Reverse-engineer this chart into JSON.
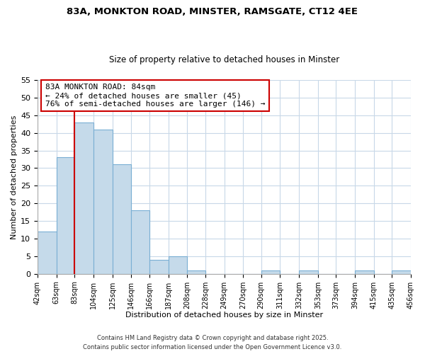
{
  "title": "83A, MONKTON ROAD, MINSTER, RAMSGATE, CT12 4EE",
  "subtitle": "Size of property relative to detached houses in Minster",
  "xlabel": "Distribution of detached houses by size in Minster",
  "ylabel": "Number of detached properties",
  "bins": [
    42,
    63,
    83,
    104,
    125,
    146,
    166,
    187,
    208,
    228,
    249,
    270,
    290,
    311,
    332,
    353,
    373,
    394,
    415,
    435,
    456
  ],
  "counts": [
    12,
    33,
    43,
    41,
    31,
    18,
    4,
    5,
    1,
    0,
    0,
    0,
    1,
    0,
    1,
    0,
    0,
    1,
    0,
    1
  ],
  "bar_color": "#c5daea",
  "bar_edge_color": "#7aafd4",
  "vline_x": 83,
  "vline_color": "#cc0000",
  "ylim": [
    0,
    55
  ],
  "yticks": [
    0,
    5,
    10,
    15,
    20,
    25,
    30,
    35,
    40,
    45,
    50,
    55
  ],
  "annotation_title": "83A MONKTON ROAD: 84sqm",
  "annotation_line1": "← 24% of detached houses are smaller (45)",
  "annotation_line2": "76% of semi-detached houses are larger (146) →",
  "annotation_box_color": "#ffffff",
  "annotation_box_edge": "#cc0000",
  "footnote1": "Contains HM Land Registry data © Crown copyright and database right 2025.",
  "footnote2": "Contains public sector information licensed under the Open Government Licence v3.0.",
  "background_color": "#ffffff",
  "grid_color": "#c8d8e8"
}
